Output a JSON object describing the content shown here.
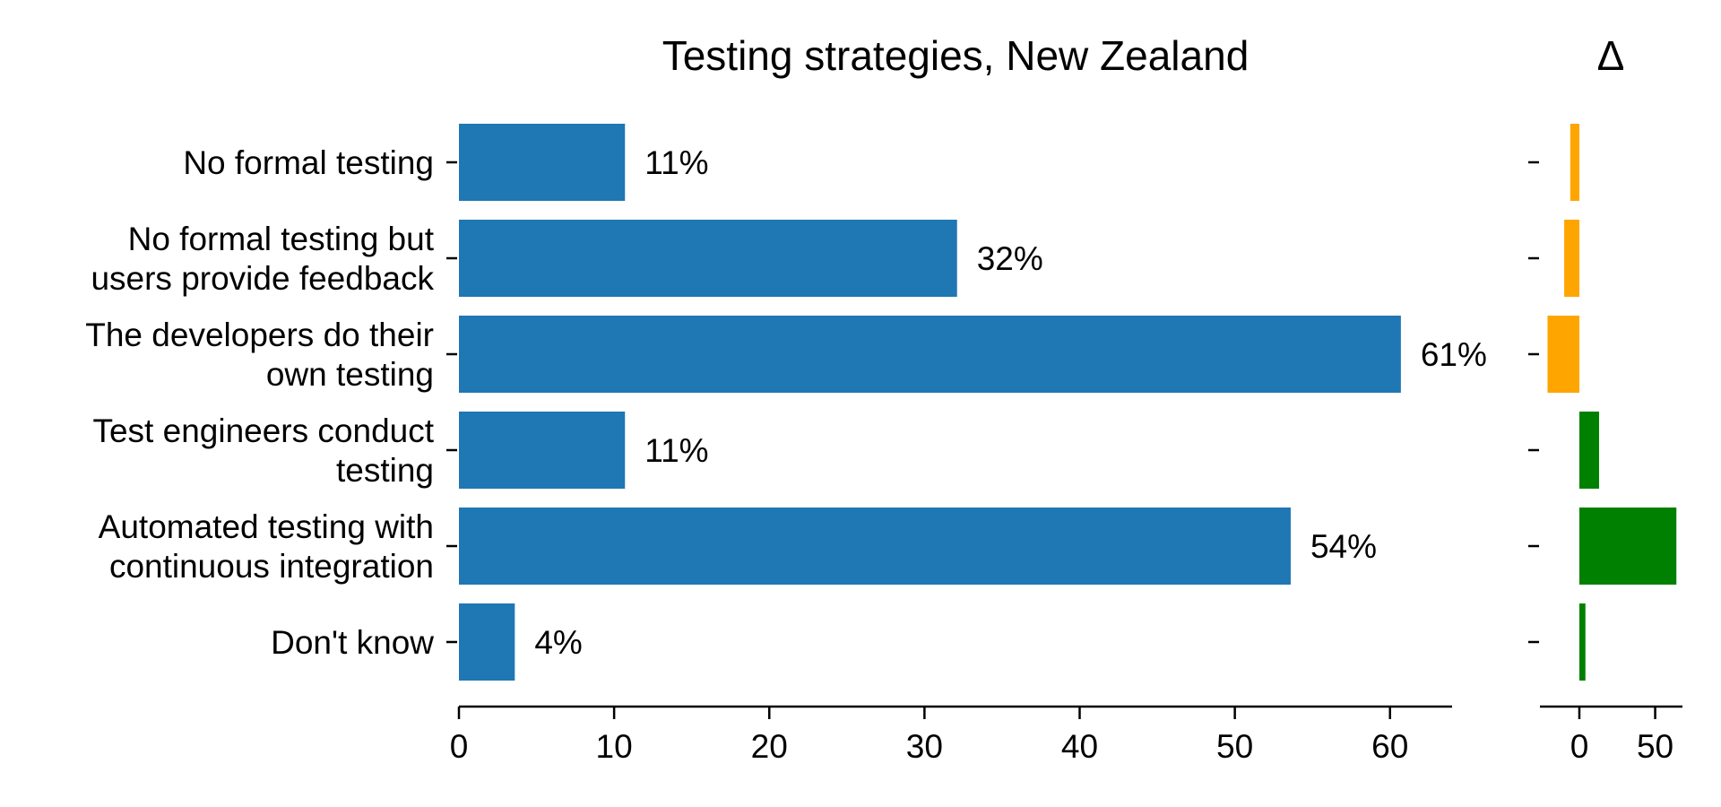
{
  "chart_data": [
    {
      "type": "bar",
      "orientation": "horizontal",
      "title": "Testing strategies, New Zealand",
      "xlabel": "",
      "ylabel": "",
      "categories": [
        [
          "No formal testing"
        ],
        [
          "No formal testing but",
          "users provide feedback"
        ],
        [
          "The developers do their",
          "own testing"
        ],
        [
          "Test engineers conduct",
          "testing"
        ],
        [
          "Automated testing with",
          "continuous integration"
        ],
        [
          "Don't know"
        ]
      ],
      "values": [
        10.7,
        32.1,
        60.7,
        10.7,
        53.6,
        3.6
      ],
      "value_labels": [
        "11%",
        "32%",
        "61%",
        "11%",
        "54%",
        "4%"
      ],
      "xlim": [
        0,
        64
      ],
      "xticks": [
        "0",
        "10",
        "20",
        "30",
        "40",
        "50",
        "60"
      ],
      "color": "#1f77b4",
      "grid": false
    },
    {
      "type": "bar",
      "orientation": "horizontal",
      "title": "Δ",
      "categories": [
        [
          "No formal testing"
        ],
        [
          "No formal testing but",
          "users provide feedback"
        ],
        [
          "The developers do their",
          "own testing"
        ],
        [
          "Test engineers conduct",
          "testing"
        ],
        [
          "Automated testing with",
          "continuous integration"
        ],
        [
          "Don't know"
        ]
      ],
      "values": [
        -6,
        -10,
        -21,
        13,
        64,
        4
      ],
      "xlim": [
        -26,
        68
      ],
      "xticks": [
        "0",
        "50"
      ],
      "positive_color": "#008000",
      "negative_color": "#ffa500",
      "grid": false
    }
  ]
}
